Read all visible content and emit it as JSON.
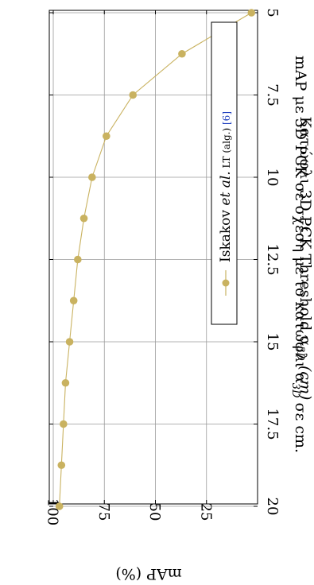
{
  "chart_data": {
    "type": "line",
    "title": "mAP με 3D PCK σε σχέση με το κατώφλι α",
    "title_sub": "3D",
    "title_suffix": " σε cm.",
    "xlabel": "Κατώφλι 3D PCK Threshold α",
    "xlabel_sub": "3D",
    "xlabel_suffix": " (cm)",
    "ylabel": "mAP (%)",
    "xlim": [
      5,
      20
    ],
    "ylim": [
      0,
      100
    ],
    "x_ticks": [
      5,
      7.5,
      10,
      12.5,
      15,
      17.5,
      20
    ],
    "x_tick_labels": [
      "5",
      "7.5",
      "10",
      "12.5",
      "15",
      "17.5",
      "20"
    ],
    "y_ticks": [
      25,
      50,
      75,
      100
    ],
    "y_tick_labels": [
      "25",
      "50",
      "75",
      "100"
    ],
    "grid": true,
    "legend_position": "top-right",
    "orientation": "rotated 90° clockwise",
    "series": [
      {
        "name": "Iskakov et al. LT (alg.) [6]",
        "legend_main": "Iskakov ",
        "legend_italic": "et al.",
        "legend_small": " LT (alg.) ",
        "legend_ref": "[6]",
        "color": "#c9b260",
        "x": [
          5,
          6.25,
          7.5,
          8.75,
          10,
          11.25,
          12.5,
          13.75,
          15,
          16.25,
          17.5,
          18.75,
          20
        ],
        "y": [
          3,
          37,
          61,
          74,
          81,
          85,
          88,
          90,
          92,
          94,
          95,
          96,
          97
        ]
      }
    ]
  }
}
